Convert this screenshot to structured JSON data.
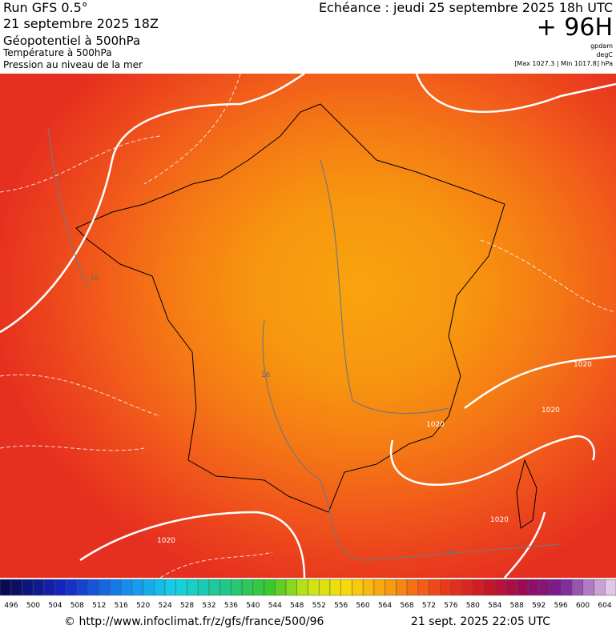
{
  "header": {
    "run": "Run GFS 0.5°",
    "run_date": "21 septembre 2025 18Z",
    "field1": "Géopotentiel à 500hPa",
    "field2": "Température à 500hPa",
    "field3": "Pression au niveau de la mer",
    "echeance": "Echéance : jeudi 25 septembre 2025 18h UTC",
    "lead": "+ 96H",
    "unit1": "gpdam",
    "unit2": "degC",
    "pressure_range": "[Max 1027.3 | Min 1017.8] hPa"
  },
  "contour_labels": [
    "1020",
    "1020",
    "1020",
    "1020",
    "1020",
    "16",
    "16",
    "16"
  ],
  "colorbar": {
    "labels": [
      496,
      500,
      504,
      508,
      512,
      516,
      520,
      524,
      528,
      532,
      536,
      540,
      544,
      548,
      552,
      556,
      560,
      564,
      568,
      572,
      576,
      580,
      584,
      588,
      592,
      596,
      600,
      604
    ]
  },
  "footer": {
    "source": "© http://www.infoclimat.fr/z/gfs/france/500/96",
    "generated": "21 sept. 2025 22:05 UTC"
  }
}
